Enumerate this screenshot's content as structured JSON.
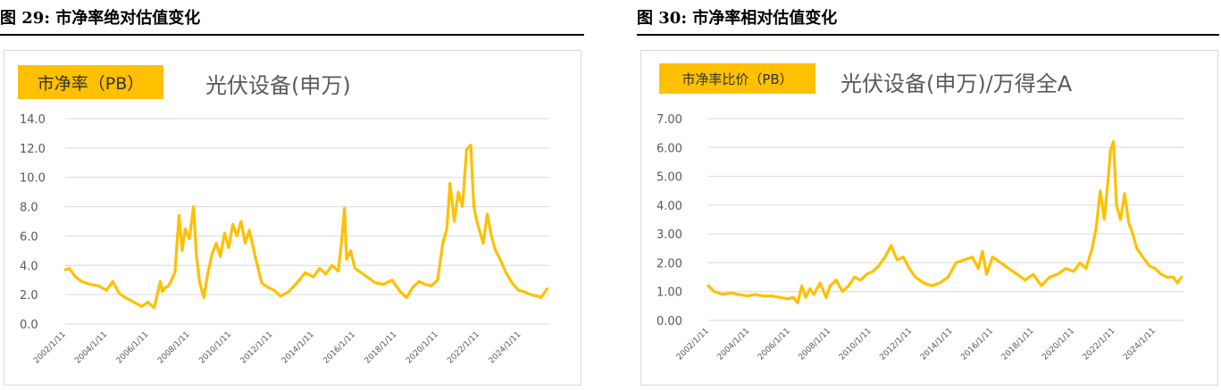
{
  "chart_data": [
    {
      "type": "line",
      "figure_label": "图 29: 市净率绝对估值变化",
      "badge": "市净率（PB）",
      "title": "光伏设备(申万)",
      "ylim": [
        0,
        14
      ],
      "y_ticks": [
        "14.0",
        "12.0",
        "10.0",
        "8.0",
        "6.0",
        "4.0",
        "2.0",
        "0.0"
      ],
      "x_ticks": [
        "2002/1/11",
        "2004/1/11",
        "2006/1/11",
        "2008/1/11",
        "2010/1/11",
        "2012/1/11",
        "2014/1/11",
        "2016/1/11",
        "2018/1/11",
        "2020/1/11",
        "2022/1/11",
        "2024/1/11"
      ],
      "xlim": [
        2002.0,
        2025.4
      ],
      "line_color": "#ffc000",
      "series": [
        {
          "name": "光伏设备(申万) PB",
          "x": [
            2002.0,
            2002.2,
            2002.5,
            2002.8,
            2003.2,
            2003.6,
            2004.0,
            2004.3,
            2004.6,
            2004.9,
            2005.3,
            2005.7,
            2006.0,
            2006.3,
            2006.6,
            2006.7,
            2006.85,
            2007.0,
            2007.3,
            2007.5,
            2007.65,
            2007.8,
            2008.0,
            2008.2,
            2008.35,
            2008.5,
            2008.7,
            2008.9,
            2009.1,
            2009.3,
            2009.5,
            2009.7,
            2009.9,
            2010.1,
            2010.3,
            2010.5,
            2010.7,
            2010.9,
            2011.2,
            2011.5,
            2011.8,
            2012.1,
            2012.4,
            2012.8,
            2013.2,
            2013.6,
            2014.0,
            2014.3,
            2014.6,
            2014.9,
            2015.2,
            2015.35,
            2015.5,
            2015.6,
            2015.8,
            2016.0,
            2016.3,
            2016.6,
            2017.0,
            2017.4,
            2017.8,
            2018.2,
            2018.5,
            2018.8,
            2019.1,
            2019.4,
            2019.7,
            2020.0,
            2020.25,
            2020.45,
            2020.6,
            2020.8,
            2021.0,
            2021.2,
            2021.4,
            2021.6,
            2021.75,
            2021.9,
            2022.0,
            2022.2,
            2022.4,
            2022.6,
            2022.8,
            2023.0,
            2023.3,
            2023.6,
            2023.9,
            2024.2,
            2024.5,
            2024.8,
            2025.0,
            2025.3
          ],
          "y": [
            3.7,
            3.8,
            3.2,
            2.9,
            2.7,
            2.6,
            2.3,
            2.9,
            2.1,
            1.8,
            1.5,
            1.2,
            1.5,
            1.1,
            2.9,
            2.2,
            2.5,
            2.6,
            3.5,
            7.4,
            5.0,
            6.5,
            5.8,
            8.0,
            4.5,
            2.8,
            1.8,
            3.5,
            4.8,
            5.5,
            4.6,
            6.2,
            5.2,
            6.8,
            6.0,
            7.0,
            5.5,
            6.4,
            4.5,
            2.8,
            2.5,
            2.3,
            1.9,
            2.2,
            2.8,
            3.5,
            3.2,
            3.8,
            3.4,
            4.0,
            3.6,
            5.5,
            7.9,
            4.4,
            5.0,
            3.8,
            3.5,
            3.2,
            2.8,
            2.7,
            3.0,
            2.2,
            1.8,
            2.5,
            2.9,
            2.7,
            2.6,
            3.0,
            5.5,
            6.5,
            9.6,
            7.0,
            9.0,
            8.0,
            11.9,
            12.2,
            8.0,
            7.0,
            6.5,
            5.5,
            7.5,
            6.0,
            5.0,
            4.5,
            3.5,
            2.8,
            2.3,
            2.2,
            2.0,
            1.9,
            1.8,
            2.4
          ]
        }
      ]
    },
    {
      "type": "line",
      "figure_label": "图 30: 市净率相对估值变化",
      "badge": "市净率比价（PB）",
      "title": "光伏设备(申万)/万得全A",
      "ylim": [
        0,
        7
      ],
      "y_ticks": [
        "7.00",
        "6.00",
        "5.00",
        "4.00",
        "3.00",
        "2.00",
        "1.00",
        "0.00"
      ],
      "x_ticks": [
        "2002/1/11",
        "2004/1/11",
        "2006/1/11",
        "2008/1/11",
        "2010/1/11",
        "2012/1/11",
        "2014/1/11",
        "2016/1/11",
        "2018/1/11",
        "2020/1/11",
        "2022/1/11",
        "2024/1/11"
      ],
      "xlim": [
        2002.0,
        2025.4
      ],
      "line_color": "#ffc000",
      "series": [
        {
          "name": "光伏设备(申万)/万得全A PB",
          "x": [
            2002.0,
            2002.3,
            2002.7,
            2003.1,
            2003.5,
            2003.9,
            2004.3,
            2004.7,
            2005.1,
            2005.5,
            2005.9,
            2006.2,
            2006.4,
            2006.6,
            2006.8,
            2007.0,
            2007.2,
            2007.5,
            2007.8,
            2008.0,
            2008.3,
            2008.6,
            2008.9,
            2009.2,
            2009.5,
            2009.8,
            2010.1,
            2010.4,
            2010.7,
            2011.0,
            2011.3,
            2011.6,
            2011.9,
            2012.2,
            2012.6,
            2013.0,
            2013.4,
            2013.8,
            2014.2,
            2014.6,
            2015.0,
            2015.3,
            2015.5,
            2015.7,
            2016.0,
            2016.4,
            2016.8,
            2017.2,
            2017.6,
            2018.0,
            2018.4,
            2018.8,
            2019.2,
            2019.6,
            2020.0,
            2020.3,
            2020.6,
            2020.9,
            2021.1,
            2021.3,
            2021.5,
            2021.7,
            2021.8,
            2021.95,
            2022.1,
            2022.3,
            2022.5,
            2022.7,
            2022.9,
            2023.1,
            2023.4,
            2023.7,
            2024.0,
            2024.3,
            2024.6,
            2024.9,
            2025.1,
            2025.3
          ],
          "y": [
            1.2,
            1.0,
            0.9,
            0.95,
            0.9,
            0.85,
            0.9,
            0.85,
            0.85,
            0.8,
            0.75,
            0.8,
            0.6,
            1.2,
            0.8,
            1.1,
            0.9,
            1.3,
            0.8,
            1.2,
            1.4,
            1.0,
            1.2,
            1.5,
            1.4,
            1.6,
            1.7,
            1.9,
            2.2,
            2.6,
            2.1,
            2.2,
            1.8,
            1.5,
            1.3,
            1.2,
            1.3,
            1.5,
            2.0,
            2.1,
            2.2,
            1.8,
            2.4,
            1.6,
            2.2,
            2.0,
            1.8,
            1.6,
            1.4,
            1.6,
            1.2,
            1.5,
            1.6,
            1.8,
            1.7,
            2.0,
            1.8,
            2.5,
            3.2,
            4.5,
            3.5,
            5.0,
            5.9,
            6.2,
            4.0,
            3.5,
            4.4,
            3.4,
            3.0,
            2.5,
            2.2,
            1.9,
            1.8,
            1.6,
            1.5,
            1.5,
            1.3,
            1.5
          ]
        }
      ]
    }
  ]
}
